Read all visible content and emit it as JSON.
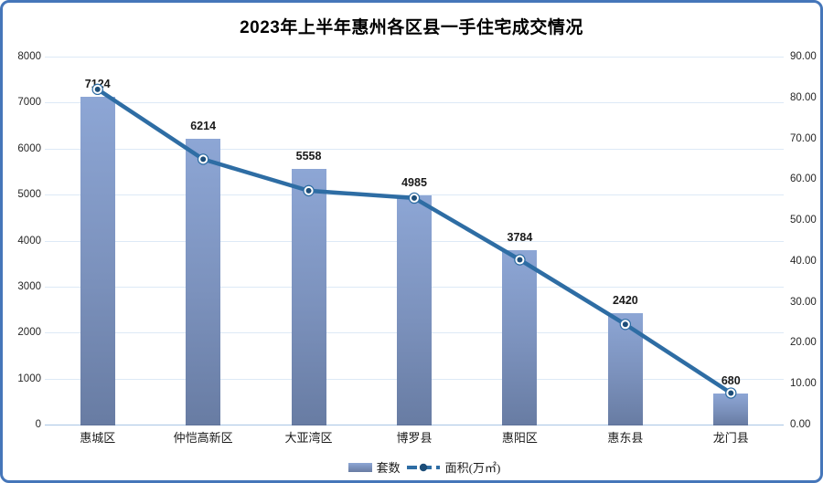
{
  "frame": {
    "border_color": "#4576B9",
    "background": "#FFFFFF"
  },
  "chart_data": {
    "type": "bar",
    "subtype": "combo-bar-line-dual-axis",
    "title": "2023年上半年惠州各区县一手住宅成交情况",
    "categories": [
      "惠城区",
      "仲恺高新区",
      "大亚湾区",
      "博罗县",
      "惠阳区",
      "惠东县",
      "龙门县"
    ],
    "series": [
      {
        "name": "套数",
        "type": "bar",
        "axis": "left",
        "values": [
          7124,
          6214,
          5558,
          4985,
          3784,
          2420,
          680
        ],
        "data_labels": [
          "7124",
          "6214",
          "5558",
          "4985",
          "3784",
          "2420",
          "680"
        ],
        "color_top": "#8DA6D5",
        "color_bottom": "#687CA3"
      },
      {
        "name": "面积(万㎡)",
        "type": "line",
        "axis": "right",
        "values": [
          82.0,
          64.9,
          57.2,
          55.4,
          40.3,
          24.5,
          7.7
        ],
        "values_estimated": true,
        "line_color": "#2E6DA4",
        "marker_fill": "#1D4E79",
        "marker_ring": "#FFFFFF"
      }
    ],
    "left_axis": {
      "min": 0,
      "max": 8000,
      "step": 1000,
      "ticks": [
        "0",
        "1000",
        "2000",
        "3000",
        "4000",
        "5000",
        "6000",
        "7000",
        "8000"
      ]
    },
    "right_axis": {
      "min": 0,
      "max": 90,
      "step": 10,
      "ticks": [
        "0.00",
        "10.00",
        "20.00",
        "30.00",
        "40.00",
        "50.00",
        "60.00",
        "70.00",
        "80.00",
        "90.00"
      ]
    },
    "gridlines": true,
    "gridline_color": "#DDE9F6",
    "axis_line_color": "#A9C6E5",
    "legend_position": "bottom-center",
    "legend": [
      {
        "label": "套数",
        "swatch": "bar"
      },
      {
        "label": "面积(万㎡)",
        "swatch": "line"
      }
    ]
  }
}
